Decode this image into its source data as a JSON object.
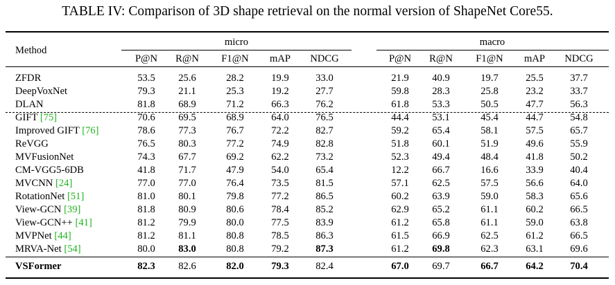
{
  "caption": "TABLE IV: Comparison of 3D shape retrieval on the normal version of ShapeNet Core55.",
  "header": {
    "method": "Method",
    "group_micro": "micro",
    "group_macro": "macro",
    "metrics": [
      "P@N",
      "R@N",
      "F1@N",
      "mAP",
      "NDCG",
      "P@N",
      "R@N",
      "F1@N",
      "mAP",
      "NDCG"
    ]
  },
  "rows": [
    {
      "method": "ZFDR",
      "ref": "",
      "values": [
        "53.5",
        "25.6",
        "28.2",
        "19.9",
        "33.0",
        "21.9",
        "40.9",
        "19.7",
        "25.5",
        "37.7"
      ],
      "bold": []
    },
    {
      "method": "DeepVoxNet",
      "ref": "",
      "values": [
        "79.3",
        "21.1",
        "25.3",
        "19.2",
        "27.7",
        "59.8",
        "28.3",
        "25.8",
        "23.2",
        "33.7"
      ],
      "bold": []
    },
    {
      "method": "DLAN",
      "ref": "",
      "values": [
        "81.8",
        "68.9",
        "71.2",
        "66.3",
        "76.2",
        "61.8",
        "53.3",
        "50.5",
        "47.7",
        "56.3"
      ],
      "bold": []
    },
    {
      "method": "GIFT ",
      "ref": "[75]",
      "values": [
        "70.6",
        "69.5",
        "68.9",
        "64.0",
        "76.5",
        "44.4",
        "53.1",
        "45.4",
        "44.7",
        "54.8"
      ],
      "bold": []
    },
    {
      "method": "Improved GIFT ",
      "ref": "[76]",
      "values": [
        "78.6",
        "77.3",
        "76.7",
        "72.2",
        "82.7",
        "59.2",
        "65.4",
        "58.1",
        "57.5",
        "65.7"
      ],
      "bold": []
    },
    {
      "method": "ReVGG",
      "ref": "",
      "values": [
        "76.5",
        "80.3",
        "77.2",
        "74.9",
        "82.8",
        "51.8",
        "60.1",
        "51.9",
        "49.6",
        "55.9"
      ],
      "bold": []
    },
    {
      "method": "MVFusionNet",
      "ref": "",
      "values": [
        "74.3",
        "67.7",
        "69.2",
        "62.2",
        "73.2",
        "52.3",
        "49.4",
        "48.4",
        "41.8",
        "50.2"
      ],
      "bold": []
    },
    {
      "method": "CM-VGG5-6DB",
      "ref": "",
      "values": [
        "41.8",
        "71.7",
        "47.9",
        "54.0",
        "65.4",
        "12.2",
        "66.7",
        "16.6",
        "33.9",
        "40.4"
      ],
      "bold": []
    },
    {
      "method": "MVCNN ",
      "ref": "[24]",
      "values": [
        "77.0",
        "77.0",
        "76.4",
        "73.5",
        "81.5",
        "57.1",
        "62.5",
        "57.5",
        "56.6",
        "64.0"
      ],
      "bold": []
    },
    {
      "method": "RotationNet ",
      "ref": "[51]",
      "values": [
        "81.0",
        "80.1",
        "79.8",
        "77.2",
        "86.5",
        "60.2",
        "63.9",
        "59.0",
        "58.3",
        "65.6"
      ],
      "bold": []
    },
    {
      "method": "View-GCN ",
      "ref": "[39]",
      "values": [
        "81.8",
        "80.9",
        "80.6",
        "78.4",
        "85.2",
        "62.9",
        "65.2",
        "61.1",
        "60.2",
        "66.5"
      ],
      "bold": []
    },
    {
      "method": "View-GCN++ ",
      "ref": "[41]",
      "values": [
        "81.2",
        "79.9",
        "80.0",
        "77.5",
        "83.9",
        "61.2",
        "65.8",
        "61.1",
        "59.0",
        "63.8"
      ],
      "bold": []
    },
    {
      "method": "MVPNet ",
      "ref": "[44]",
      "values": [
        "81.2",
        "81.1",
        "80.8",
        "78.5",
        "86.3",
        "61.5",
        "66.9",
        "62.5",
        "61.2",
        "66.5"
      ],
      "bold": []
    },
    {
      "method": "MRVA-Net ",
      "ref": "[54]",
      "values": [
        "80.0",
        "83.0",
        "80.8",
        "79.2",
        "87.3",
        "61.2",
        "69.8",
        "62.3",
        "63.1",
        "69.6"
      ],
      "bold": [
        1,
        4,
        6
      ]
    },
    {
      "method": "VSFormer",
      "ref": "",
      "values": [
        "82.3",
        "82.6",
        "82.0",
        "79.3",
        "82.4",
        "67.0",
        "69.7",
        "66.7",
        "64.2",
        "70.4"
      ],
      "bold": [
        0,
        2,
        3,
        5,
        7,
        8,
        9
      ],
      "method_bold": true
    }
  ]
}
